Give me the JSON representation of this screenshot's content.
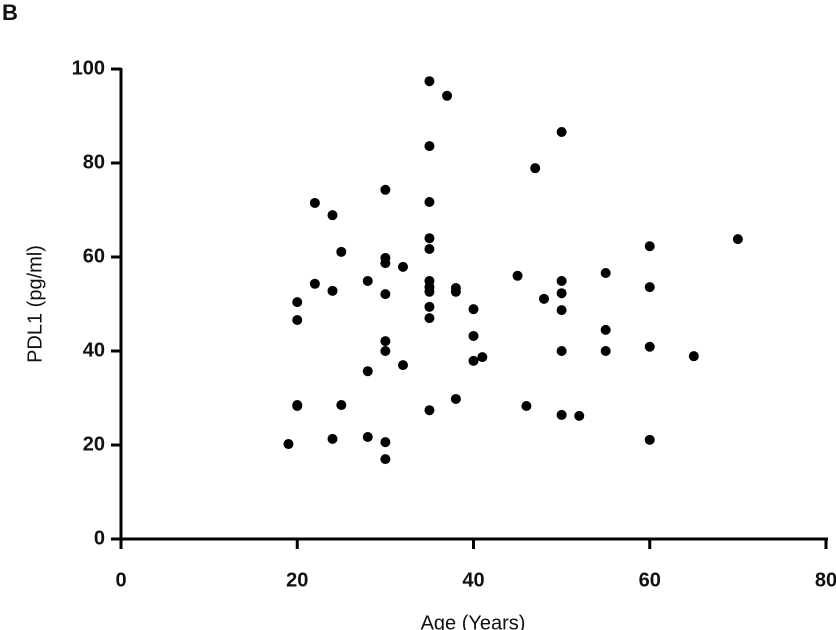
{
  "chart_data": {
    "type": "scatter",
    "panel_label": "B",
    "x_label": "Age (Years)",
    "y_label": "PDL1 (pg/ml)",
    "x": [
      19,
      20,
      20,
      20,
      20,
      22,
      22,
      24,
      24,
      24,
      25,
      25,
      28,
      28,
      28,
      30,
      30,
      30,
      30,
      30,
      30,
      30,
      30,
      32,
      32,
      35,
      35,
      35,
      35,
      35,
      35,
      35,
      35,
      35,
      35,
      35,
      37,
      38,
      38,
      38,
      40,
      40,
      40,
      41,
      45,
      46,
      47,
      48,
      50,
      50,
      50,
      50,
      50,
      50,
      52,
      55,
      55,
      55,
      60,
      60,
      60,
      60,
      65,
      70
    ],
    "values": [
      20.2,
      50.4,
      46.6,
      28.5,
      28.3,
      71.5,
      54.3,
      68.9,
      52.8,
      21.3,
      61.1,
      28.5,
      54.9,
      35.7,
      21.7,
      74.3,
      59.8,
      58.7,
      52.1,
      42.1,
      40.0,
      20.6,
      17.0,
      57.9,
      37.0,
      97.4,
      83.6,
      71.7,
      64.0,
      61.7,
      54.9,
      53.6,
      52.6,
      49.4,
      47.0,
      27.4,
      94.3,
      53.4,
      52.6,
      29.8,
      48.9,
      43.2,
      37.9,
      38.7,
      56.0,
      28.3,
      78.9,
      51.1,
      86.6,
      54.9,
      52.3,
      48.7,
      40.0,
      26.4,
      26.2,
      56.6,
      44.5,
      40.0,
      62.3,
      53.6,
      40.9,
      21.1,
      38.9,
      63.8
    ],
    "color": "#000000",
    "xlim": [
      0,
      80
    ],
    "xticks": [
      0,
      20,
      40,
      60,
      80
    ],
    "ylim": [
      0,
      100
    ],
    "yticks": [
      0,
      20,
      40,
      60,
      80,
      100
    ]
  }
}
